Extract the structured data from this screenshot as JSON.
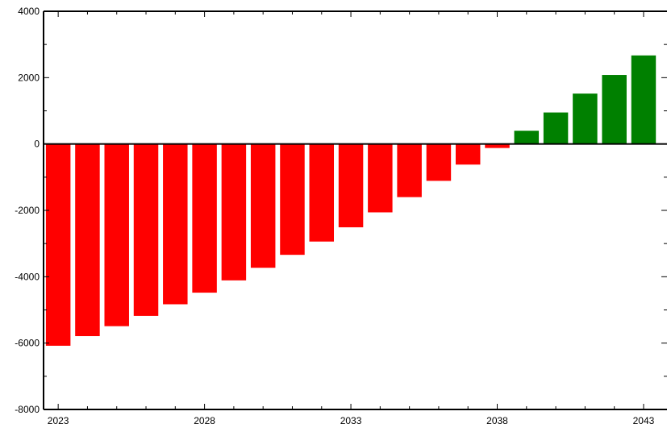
{
  "chart_data": {
    "type": "bar",
    "title": "",
    "xlabel": "",
    "ylabel": "",
    "x": [
      2023,
      2024,
      2025,
      2026,
      2027,
      2028,
      2029,
      2030,
      2031,
      2032,
      2033,
      2034,
      2035,
      2036,
      2037,
      2038,
      2039,
      2040,
      2041,
      2042,
      2043
    ],
    "values": [
      -6080,
      -5790,
      -5490,
      -5180,
      -4830,
      -4480,
      -4110,
      -3730,
      -3340,
      -2940,
      -2510,
      -2060,
      -1600,
      -1110,
      -620,
      -120,
      400,
      950,
      1520,
      2080,
      2670
    ],
    "ylim": [
      -8000,
      4000
    ],
    "xlim": [
      2022.5,
      2043.8
    ],
    "y_ticks": [
      "4000",
      "2000",
      "0",
      "-2000",
      "-4000",
      "-6000",
      "-8000"
    ],
    "x_ticks": [
      "2023",
      "2028",
      "2033",
      "2038",
      "2043"
    ],
    "grid": false,
    "colors": {
      "negative": "#ff0000",
      "positive": "#008000"
    }
  }
}
